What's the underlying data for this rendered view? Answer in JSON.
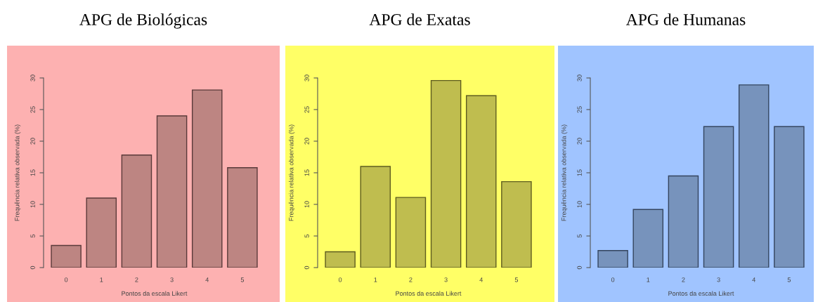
{
  "chart_data": [
    {
      "type": "bar",
      "title": "APG de Biológicas",
      "xlabel": "Pontos da escala Likert",
      "ylabel": "Frequência relativa observada (%)",
      "categories": [
        "0",
        "1",
        "2",
        "3",
        "4",
        "5"
      ],
      "values": [
        3.5,
        11,
        17.8,
        24,
        28.1,
        15.8
      ],
      "color": "#bd8582",
      "ylim": [
        0,
        30
      ],
      "yticks": [
        0,
        5,
        10,
        15,
        20,
        25,
        30
      ]
    },
    {
      "type": "bar",
      "title": "APG de Exatas",
      "xlabel": "Pontos da escala Likert",
      "ylabel": "Frequência relativa observada (%)",
      "categories": [
        "0",
        "1",
        "2",
        "3",
        "4",
        "5"
      ],
      "values": [
        2.5,
        16,
        11.1,
        29.6,
        27.2,
        13.6
      ],
      "color": "#bfbd4f",
      "ylim": [
        0,
        30
      ],
      "yticks": [
        0,
        5,
        10,
        15,
        20,
        25,
        30
      ]
    },
    {
      "type": "bar",
      "title": "APG de Humanas",
      "xlabel": "Pontos da escala Likert",
      "ylabel": "Frequência relativa observada (%)",
      "categories": [
        "0",
        "1",
        "2",
        "3",
        "4",
        "5"
      ],
      "values": [
        2.7,
        9.2,
        14.5,
        22.3,
        28.9,
        22.3
      ],
      "color": "#7793bc",
      "ylim": [
        0,
        30
      ],
      "yticks": [
        0,
        5,
        10,
        15,
        20,
        25,
        30
      ]
    }
  ]
}
